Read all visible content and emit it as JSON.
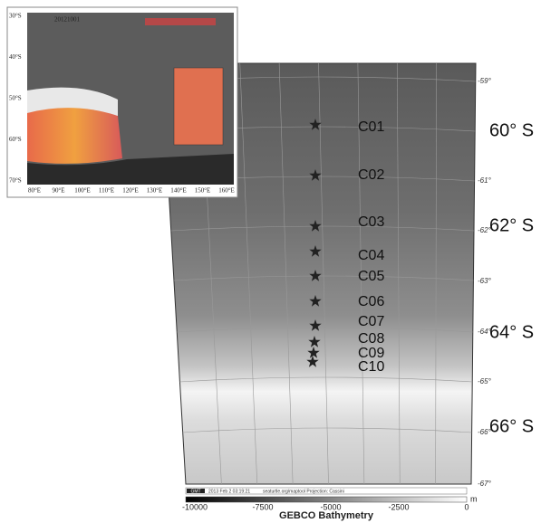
{
  "stations": [
    "C01",
    "C02",
    "C03",
    "C04",
    "C05",
    "C06",
    "C07",
    "C08",
    "C09",
    "C10"
  ],
  "lat_labels": [
    "60° S",
    "62° S",
    "64° S",
    "66° S"
  ],
  "map_ticks": [
    "-59°",
    "-61°",
    "-62°",
    "-63°",
    "-64°",
    "-65°",
    "-66°",
    "-67°"
  ],
  "stamp": {
    "logo": "GMT",
    "date": "2013 Feb  2 03:19:21",
    "credit": "seaturtle.org/maptool Projection: Cassini"
  },
  "colorbar": {
    "ticks": [
      "-10000",
      "-7500",
      "-5000",
      "-2500",
      "0"
    ],
    "unit": "m",
    "title": "GEBCO Bathymetry"
  },
  "inset": {
    "date": "20121001",
    "lats": [
      "30°S",
      "40°S",
      "50°S",
      "60°S",
      "70°S"
    ],
    "lons": [
      "80°E",
      "90°E",
      "100°E",
      "110°E",
      "120°E",
      "130°E",
      "140°E",
      "150°E",
      "160°E"
    ]
  }
}
